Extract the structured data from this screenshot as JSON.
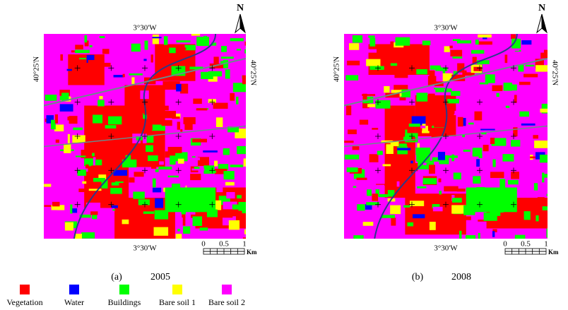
{
  "maps": [
    {
      "caption_label": "(a)",
      "caption_year": "2005",
      "top_longitude": "3°30'W",
      "bottom_longitude": "3°30'W",
      "left_latitude": "40°25'N",
      "right_latitude": "40°25'N",
      "north": "N",
      "scale": {
        "ticks": [
          "0",
          "0.5",
          "1"
        ],
        "unit": "Km"
      }
    },
    {
      "caption_label": "(b)",
      "caption_year": "2008",
      "top_longitude": "3°30'W",
      "bottom_longitude": "3°30'W",
      "left_latitude": "40°25'N",
      "right_latitude": "40°25'N",
      "north": "N",
      "scale": {
        "ticks": [
          "0",
          "0.5",
          "1"
        ],
        "unit": "Km"
      }
    }
  ],
  "legend": [
    {
      "label": "Vegetation",
      "color": "#ff0000"
    },
    {
      "label": "Water",
      "color": "#0000ff"
    },
    {
      "label": "Buildings",
      "color": "#00ff00"
    },
    {
      "label": "Bare soil 1",
      "color": "#ffff00"
    },
    {
      "label": "Bare soil 2",
      "color": "#ff00ff"
    }
  ]
}
